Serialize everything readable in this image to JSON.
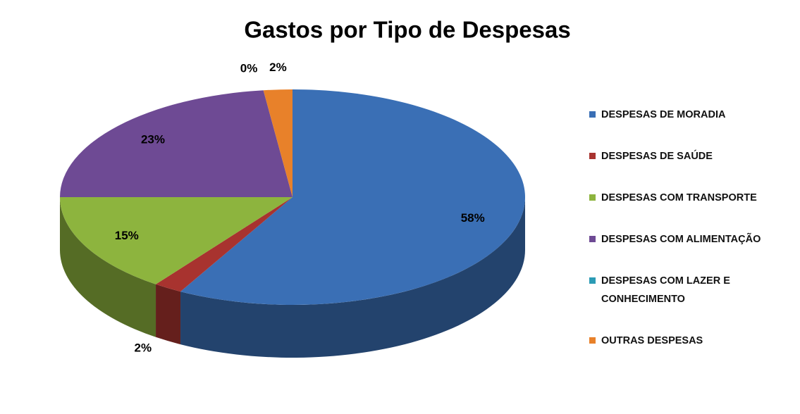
{
  "chart_data": {
    "type": "pie",
    "title": "Gastos por Tipo de Despesas",
    "categories": [
      "DESPESAS DE MORADIA",
      "DESPESAS DE SAÚDE",
      "DESPESAS COM TRANSPORTE",
      "DESPESAS COM ALIMENTAÇÃO",
      "DESPESAS COM LAZER E CONHECIMENTO",
      "OUTRAS DESPESAS"
    ],
    "values": [
      58,
      2,
      15,
      23,
      0,
      2
    ],
    "value_labels": [
      "58%",
      "2%",
      "15%",
      "23%",
      "0%",
      "2%"
    ],
    "colors": [
      "#3a6fb5",
      "#a8332f",
      "#8db43e",
      "#6e4a94",
      "#2b9bb5",
      "#e8812a"
    ],
    "legend": "right"
  }
}
